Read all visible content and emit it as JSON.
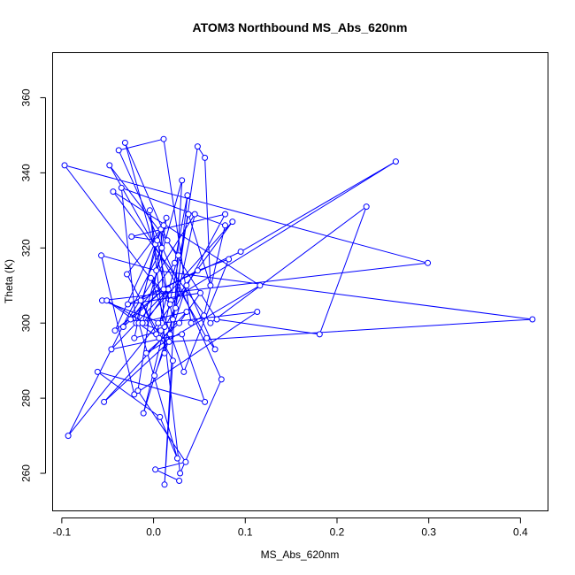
{
  "chart_data": {
    "type": "line",
    "title": "ATOM3 Northbound MS_Abs_620nm",
    "xlabel": "MS_Abs_620nm",
    "ylabel": "Theta (K)",
    "xlim": [
      -0.11,
      0.43
    ],
    "ylim": [
      250,
      372
    ],
    "xticks": [
      -0.1,
      0.0,
      0.1,
      0.2,
      0.3,
      0.4
    ],
    "xtick_labels": [
      "-0.1",
      "0.0",
      "0.1",
      "0.2",
      "0.3",
      "0.4"
    ],
    "yticks": [
      260,
      280,
      300,
      320,
      340,
      360
    ],
    "ytick_labels": [
      "260",
      "280",
      "300",
      "320",
      "340",
      "360"
    ],
    "grid": false,
    "marker": "open-circle",
    "color": "#0000ff",
    "series": [
      {
        "x": [
          0.001,
          0.018,
          0.048,
          0.056,
          0.062,
          0.038,
          0.012,
          -0.011,
          0.024,
          0.037,
          0.023,
          -0.025,
          0.008,
          -0.021,
          0.002,
          -0.004,
          0.029,
          0.074,
          -0.038,
          0.011,
          0.041,
          0.055,
          0.078,
          -0.035,
          -0.019,
          0.008,
          0.012,
          0.036,
          0.067,
          0.058,
          -0.048,
          0.027,
          0.003,
          -0.014,
          0.048,
          0.082,
          0.033,
          -0.003,
          0.019,
          0.264,
          0.095,
          -0.028,
          0.051,
          0.028,
          -0.008,
          0.116,
          -0.044,
          0.062,
          0.232,
          0.181,
          0.069,
          0.015,
          -0.031,
          0.018,
          -0.097,
          0.299,
          -0.056,
          0.009,
          0.113,
          -0.021,
          -0.057,
          0.003,
          0.413,
          0.017,
          -0.054,
          0.036,
          -0.016,
          0.026,
          0.007,
          -0.061,
          0.056,
          0.031,
          -0.046,
          0.016,
          -0.009,
          -0.051,
          0.006,
          0.078,
          -0.024,
          0.004,
          0.021,
          0.045,
          -0.033,
          0.011,
          -0.042,
          0.014,
          0.009,
          -0.093,
          0.005,
          0.086,
          -0.012,
          0.031,
          0.012,
          0.021,
          -0.029,
          0.011,
          -0.017,
          0.035,
          0.002,
          0.028
        ],
        "y": [
          286,
          297,
          347,
          344,
          310,
          329,
          299,
          276,
          304,
          334,
          316,
          301,
          298,
          296,
          321,
          330,
          260,
          285,
          346,
          349,
          300,
          302,
          326,
          336,
          300,
          325,
          292,
          310,
          293,
          296,
          342,
          318,
          297,
          306,
          314,
          317,
          287,
          312,
          306,
          343,
          319,
          305,
          308,
          300,
          292,
          310,
          335,
          300,
          331,
          297,
          301,
          322,
          348,
          305,
          342,
          316,
          306,
          300,
          303,
          281,
          318,
          314,
          301,
          295,
          279,
          303,
          300,
          264,
          275,
          287,
          279,
          297,
          293,
          309,
          300,
          306,
          296,
          329,
          323,
          322,
          301,
          329,
          299,
          309,
          298,
          328,
          320,
          270,
          300,
          327,
          300,
          338,
          257,
          290,
          313,
          326,
          282,
          263,
          261,
          258
        ]
      }
    ]
  }
}
